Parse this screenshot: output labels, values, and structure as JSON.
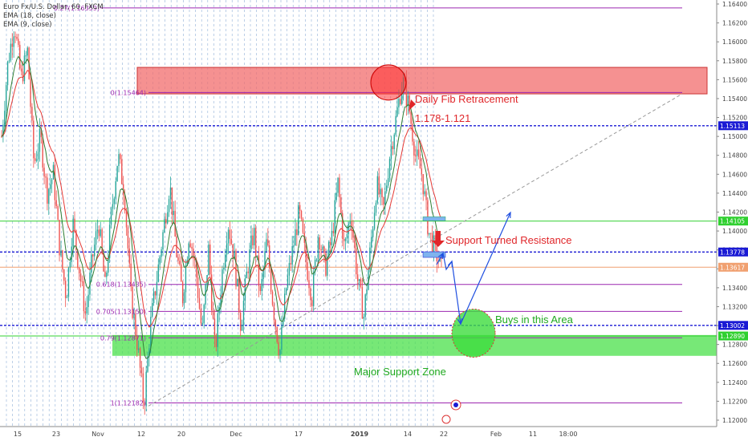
{
  "legend": {
    "symbol": "Euro Fx/U.S. Dollar, 60, FXCM",
    "ema18": "EMA (18, close)",
    "ema9": "EMA (9, close)"
  },
  "colors": {
    "up_candle": "#26a69a",
    "down_candle": "#ef5350",
    "ema18": "#e53935",
    "ema9": "#2e7d32",
    "fib": "#9c27b0",
    "blue_level": "#1a1ad4",
    "green_level": "#30d030",
    "orange_level": "#f0a070",
    "resistance_zone": "#f26c6c",
    "support_zone": "#49e049",
    "arrow": "#1f4fe0",
    "annotation_red": "#e0262a",
    "annotation_green": "#1fa91f"
  },
  "annotations": {
    "fib_retracement": "Daily Fib Retracement",
    "fib_range": "1.178-1.121",
    "support_resistance": "Support Turned Resistance",
    "buy_area": "Buys in this Area",
    "major_support": "Major Support Zone"
  },
  "chart_data": {
    "type": "candlestick",
    "instrument": "Euro Fx/U.S. Dollar",
    "timeframe": "60",
    "source": "FXCM",
    "ylim": [
      1.1187,
      1.1658
    ],
    "y_ticks": [
      1.12,
      1.122,
      1.124,
      1.126,
      1.128,
      1.13,
      1.132,
      1.134,
      1.136,
      1.138,
      1.14,
      1.142,
      1.144,
      1.146,
      1.148,
      1.15,
      1.152,
      1.154,
      1.156,
      1.158,
      1.16,
      1.162,
      1.164
    ],
    "x_ticks": [
      "15",
      "23",
      "Nov",
      "12",
      "20",
      "Dec",
      "17",
      "2019",
      "14",
      "22",
      "Feb",
      "11",
      "18:00"
    ],
    "fib_levels": [
      {
        "label": "0.27(1.16359)",
        "value": 1.16359
      },
      {
        "label": "0(1.15464)",
        "value": 1.15464
      },
      {
        "label": "0.618(1.13435)",
        "value": 1.13435
      },
      {
        "label": "0.705(1.13150)",
        "value": 1.1315
      },
      {
        "label": "0.79(1.12871)",
        "value": 1.12871
      },
      {
        "label": "1(1.12182)",
        "value": 1.12182
      }
    ],
    "price_labels": [
      {
        "label": "1.15113",
        "value": 1.15113,
        "color": "#1a1ad4"
      },
      {
        "label": "1.14105",
        "value": 1.14105,
        "color": "#30d030"
      },
      {
        "label": "1.13778",
        "value": 1.13778,
        "color": "#1a1ad4"
      },
      {
        "label": "1.13617",
        "value": 1.13617,
        "color": "#f0a070"
      },
      {
        "label": "1.13002",
        "value": 1.13002,
        "color": "#1a1ad4"
      },
      {
        "label": "1.12890",
        "value": 1.1289,
        "color": "#30d030"
      }
    ],
    "zones": [
      {
        "name": "resistance",
        "from": 1.1545,
        "to": 1.1573
      },
      {
        "name": "support",
        "from": 1.1268,
        "to": 1.129
      }
    ],
    "price_path": [
      1.15,
      1.158,
      1.162,
      1.156,
      1.159,
      1.147,
      1.15,
      1.144,
      1.146,
      1.138,
      1.133,
      1.141,
      1.136,
      1.131,
      1.137,
      1.141,
      1.134,
      1.142,
      1.148,
      1.144,
      1.133,
      1.128,
      1.1215,
      1.13,
      1.135,
      1.14,
      1.145,
      1.138,
      1.133,
      1.14,
      1.136,
      1.129,
      1.138,
      1.127,
      1.135,
      1.141,
      1.137,
      1.13,
      1.136,
      1.14,
      1.133,
      1.139,
      1.132,
      1.127,
      1.134,
      1.138,
      1.142,
      1.137,
      1.133,
      1.14,
      1.136,
      1.139,
      1.145,
      1.138,
      1.142,
      1.135,
      1.131,
      1.138,
      1.145,
      1.142,
      1.148,
      1.152,
      1.156,
      1.153,
      1.148,
      1.146,
      1.14,
      1.138,
      1.136
    ]
  }
}
